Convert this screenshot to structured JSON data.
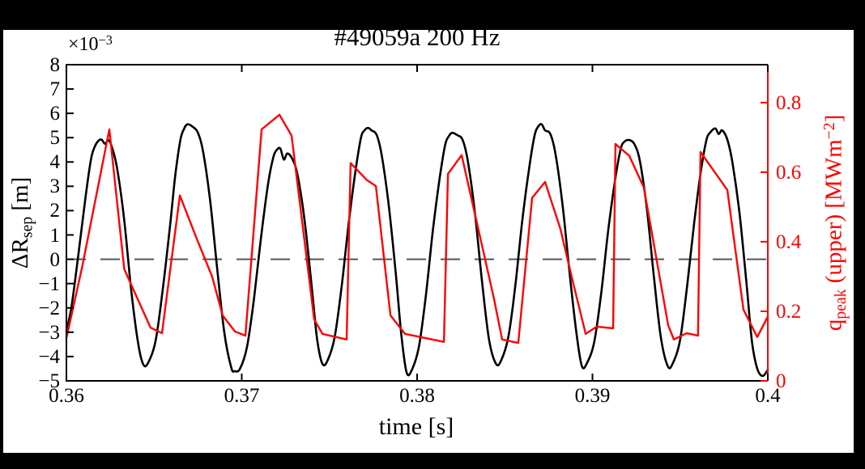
{
  "figure": {
    "title": "#49059a 200 Hz",
    "outer_background": "#000000",
    "plot_background": "#ffffff"
  },
  "chart_data": {
    "type": "line",
    "title": "#49059a 200 Hz",
    "xlabel_main": "time [s]",
    "xlim": [
      0.36,
      0.4
    ],
    "x_ticks": [
      0.36,
      0.37,
      0.38,
      0.39,
      0.4
    ],
    "x_tick_labels": [
      "0.36",
      "0.37",
      "0.38",
      "0.39",
      "0.4"
    ],
    "grid": false,
    "zero_line": {
      "value": 0,
      "style": "dashed",
      "color": "#555555"
    },
    "left_axis": {
      "label_prefix": "ΔR",
      "label_sub": "sep",
      "label_suffix": " [m]",
      "multiplier_base": "×10",
      "multiplier_exp": "−3",
      "unit_scale": "1e-3",
      "ylim": [
        -5,
        8
      ],
      "ticks": [
        8,
        7,
        6,
        5,
        4,
        3,
        2,
        1,
        0,
        -1,
        -2,
        -3,
        -4,
        -5
      ],
      "tick_labels": [
        "8",
        "7",
        "6",
        "5",
        "4",
        "3",
        "2",
        "1",
        "0",
        "−1",
        "−2",
        "−3",
        "−4",
        "−5"
      ],
      "color": "#000000"
    },
    "right_axis": {
      "label_prefix": "q",
      "label_sub": "peak",
      "label_mid": " (upper) [MWm",
      "label_sup": "−2",
      "label_suffix": "]",
      "ylim": [
        0,
        0.909
      ],
      "ticks": [
        0,
        0.2,
        0.4,
        0.6,
        0.8
      ],
      "tick_labels": [
        "0",
        "0.2",
        "0.4",
        "0.6",
        "0.8"
      ],
      "color": "#ff0000"
    },
    "series": [
      {
        "name": "delta_R_sep",
        "axis": "left",
        "color": "#000000",
        "line_style": "smooth",
        "line_width": 2.6,
        "points": [
          [
            0.36,
            -2.95
          ],
          [
            0.3603,
            -1.9
          ],
          [
            0.3607,
            0.3
          ],
          [
            0.3611,
            2.6
          ],
          [
            0.3614,
            4.1
          ],
          [
            0.3616,
            4.6
          ],
          [
            0.3618,
            4.85
          ],
          [
            0.362,
            4.92
          ],
          [
            0.3622,
            4.75
          ],
          [
            0.3624,
            4.9
          ],
          [
            0.3626,
            4.6
          ],
          [
            0.3629,
            3.7
          ],
          [
            0.3633,
            1.6
          ],
          [
            0.3637,
            -1.3
          ],
          [
            0.3641,
            -3.5
          ],
          [
            0.3644,
            -4.35
          ],
          [
            0.3647,
            -4.2
          ],
          [
            0.3651,
            -3.3
          ],
          [
            0.3655,
            -1.2
          ],
          [
            0.3659,
            1.3
          ],
          [
            0.3662,
            3.4
          ],
          [
            0.3665,
            4.9
          ],
          [
            0.3667,
            5.35
          ],
          [
            0.3669,
            5.55
          ],
          [
            0.3672,
            5.45
          ],
          [
            0.3675,
            5.2
          ],
          [
            0.3678,
            4.4
          ],
          [
            0.3682,
            2.4
          ],
          [
            0.3686,
            -0.4
          ],
          [
            0.369,
            -3.0
          ],
          [
            0.3694,
            -4.45
          ],
          [
            0.3696,
            -4.6
          ],
          [
            0.3699,
            -4.5
          ],
          [
            0.3703,
            -3.6
          ],
          [
            0.3707,
            -1.6
          ],
          [
            0.3711,
            0.9
          ],
          [
            0.3715,
            3.1
          ],
          [
            0.3718,
            4.2
          ],
          [
            0.372,
            4.5
          ],
          [
            0.3722,
            4.55
          ],
          [
            0.3724,
            4.1
          ],
          [
            0.3726,
            4.35
          ],
          [
            0.3729,
            4.1
          ],
          [
            0.3732,
            3.4
          ],
          [
            0.3736,
            1.5
          ],
          [
            0.374,
            -1.2
          ],
          [
            0.3743,
            -3.3
          ],
          [
            0.3746,
            -4.3
          ],
          [
            0.3749,
            -4.15
          ],
          [
            0.3753,
            -3.2
          ],
          [
            0.3757,
            -1.1
          ],
          [
            0.3761,
            1.5
          ],
          [
            0.3765,
            3.7
          ],
          [
            0.3768,
            5.0
          ],
          [
            0.377,
            5.3
          ],
          [
            0.3772,
            5.4
          ],
          [
            0.3774,
            5.3
          ],
          [
            0.3777,
            5.1
          ],
          [
            0.378,
            4.2
          ],
          [
            0.3784,
            2.1
          ],
          [
            0.3788,
            -0.7
          ],
          [
            0.3791,
            -3.1
          ],
          [
            0.3794,
            -4.65
          ],
          [
            0.3797,
            -4.55
          ],
          [
            0.3801,
            -3.6
          ],
          [
            0.3805,
            -1.5
          ],
          [
            0.3809,
            1.2
          ],
          [
            0.3813,
            3.4
          ],
          [
            0.3816,
            4.7
          ],
          [
            0.3818,
            5.05
          ],
          [
            0.382,
            5.2
          ],
          [
            0.3823,
            5.1
          ],
          [
            0.3826,
            4.9
          ],
          [
            0.3829,
            4.0
          ],
          [
            0.3833,
            1.9
          ],
          [
            0.3837,
            -0.9
          ],
          [
            0.3841,
            -3.3
          ],
          [
            0.3845,
            -4.3
          ],
          [
            0.3848,
            -4.15
          ],
          [
            0.3852,
            -3.2
          ],
          [
            0.3856,
            -1.1
          ],
          [
            0.386,
            1.6
          ],
          [
            0.3864,
            3.8
          ],
          [
            0.3867,
            5.1
          ],
          [
            0.3869,
            5.45
          ],
          [
            0.3871,
            5.55
          ],
          [
            0.3873,
            5.3
          ],
          [
            0.3876,
            5.15
          ],
          [
            0.3879,
            4.3
          ],
          [
            0.3883,
            2.2
          ],
          [
            0.3887,
            -0.6
          ],
          [
            0.3891,
            -3.1
          ],
          [
            0.3894,
            -4.4
          ],
          [
            0.3897,
            -4.25
          ],
          [
            0.3901,
            -3.4
          ],
          [
            0.3905,
            -1.4
          ],
          [
            0.3909,
            1.2
          ],
          [
            0.3913,
            3.3
          ],
          [
            0.3916,
            4.5
          ],
          [
            0.3918,
            4.82
          ],
          [
            0.3921,
            4.9
          ],
          [
            0.3924,
            4.72
          ],
          [
            0.3927,
            4.05
          ],
          [
            0.3931,
            2.1
          ],
          [
            0.3935,
            -0.7
          ],
          [
            0.3939,
            -3.2
          ],
          [
            0.3943,
            -4.4
          ],
          [
            0.3946,
            -4.25
          ],
          [
            0.395,
            -3.3
          ],
          [
            0.3954,
            -1.1
          ],
          [
            0.3958,
            1.5
          ],
          [
            0.3962,
            3.7
          ],
          [
            0.3965,
            4.9
          ],
          [
            0.3967,
            5.2
          ],
          [
            0.397,
            5.38
          ],
          [
            0.3972,
            5.15
          ],
          [
            0.3974,
            5.3
          ],
          [
            0.3977,
            4.9
          ],
          [
            0.398,
            3.9
          ],
          [
            0.3984,
            1.8
          ],
          [
            0.3988,
            -1.1
          ],
          [
            0.3991,
            -3.4
          ],
          [
            0.3994,
            -4.5
          ],
          [
            0.3997,
            -4.8
          ],
          [
            0.4,
            -4.55
          ]
        ]
      },
      {
        "name": "q_peak_upper",
        "axis": "right",
        "color": "#ff0000",
        "line_style": "linear",
        "line_width": 2.4,
        "points": [
          [
            0.36,
            0.123
          ],
          [
            0.3609,
            0.328
          ],
          [
            0.36245,
            0.723
          ],
          [
            0.3633,
            0.321
          ],
          [
            0.3648,
            0.153
          ],
          [
            0.36545,
            0.137
          ],
          [
            0.36647,
            0.533
          ],
          [
            0.36739,
            0.414
          ],
          [
            0.36831,
            0.3
          ],
          [
            0.36891,
            0.188
          ],
          [
            0.36961,
            0.142
          ],
          [
            0.37021,
            0.13
          ],
          [
            0.37113,
            0.723
          ],
          [
            0.37215,
            0.765
          ],
          [
            0.37284,
            0.705
          ],
          [
            0.37413,
            0.177
          ],
          [
            0.3746,
            0.135
          ],
          [
            0.37598,
            0.119
          ],
          [
            0.37621,
            0.626
          ],
          [
            0.37714,
            0.577
          ],
          [
            0.37765,
            0.56
          ],
          [
            0.37848,
            0.188
          ],
          [
            0.37931,
            0.135
          ],
          [
            0.38153,
            0.112
          ],
          [
            0.38176,
            0.595
          ],
          [
            0.38254,
            0.649
          ],
          [
            0.38439,
            0.235
          ],
          [
            0.38485,
            0.119
          ],
          [
            0.38577,
            0.109
          ],
          [
            0.38656,
            0.526
          ],
          [
            0.3873,
            0.572
          ],
          [
            0.38817,
            0.437
          ],
          [
            0.38887,
            0.288
          ],
          [
            0.38961,
            0.135
          ],
          [
            0.39025,
            0.156
          ],
          [
            0.39118,
            0.151
          ],
          [
            0.39131,
            0.681
          ],
          [
            0.3921,
            0.647
          ],
          [
            0.39293,
            0.556
          ],
          [
            0.39432,
            0.16
          ],
          [
            0.39464,
            0.119
          ],
          [
            0.39538,
            0.137
          ],
          [
            0.39602,
            0.13
          ],
          [
            0.39616,
            0.658
          ],
          [
            0.39769,
            0.549
          ],
          [
            0.39861,
            0.205
          ],
          [
            0.3994,
            0.126
          ],
          [
            0.4,
            0.185
          ]
        ]
      }
    ]
  }
}
